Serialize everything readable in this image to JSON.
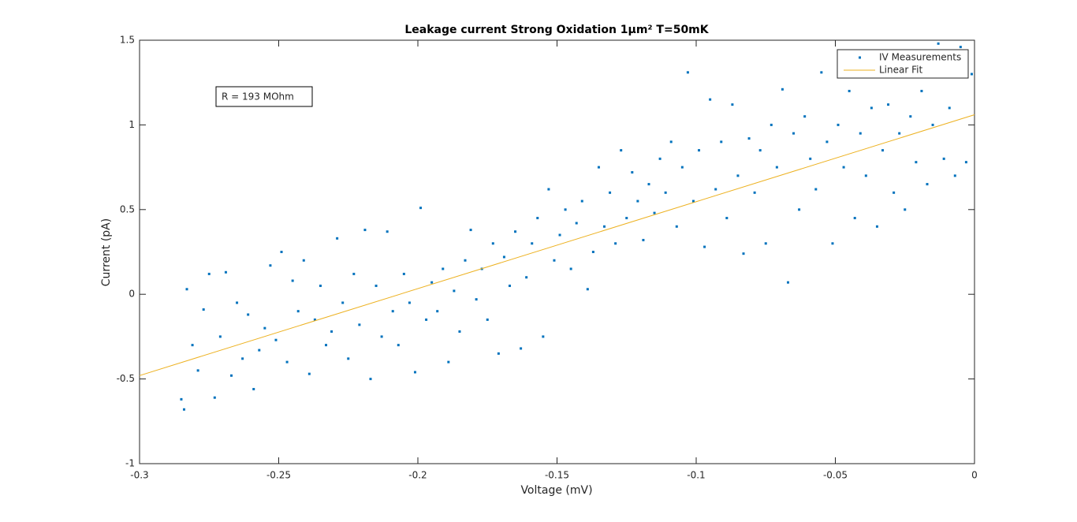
{
  "chart_data": {
    "type": "scatter",
    "title": "Leakage current Strong Oxidation 1μm² T=50mK",
    "xlabel": "Voltage (mV)",
    "ylabel": "Current (pA)",
    "annotation": "R = 193 MOhm",
    "xlim": [
      -0.3,
      0
    ],
    "xticks": [
      -0.3,
      -0.25,
      -0.2,
      -0.15,
      -0.1,
      -0.05,
      0
    ],
    "ylim": [
      -1,
      1.5
    ],
    "yticks": [
      -1,
      -0.5,
      0,
      0.5,
      1,
      1.5
    ],
    "legend": "northeast",
    "series": [
      {
        "name": "IV Measurements",
        "type": "scatter",
        "color": "#0072bd",
        "x": [
          -0.285,
          -0.284,
          -0.283,
          -0.281,
          -0.279,
          -0.277,
          -0.275,
          -0.273,
          -0.271,
          -0.269,
          -0.267,
          -0.265,
          -0.263,
          -0.261,
          -0.259,
          -0.257,
          -0.255,
          -0.253,
          -0.251,
          -0.249,
          -0.247,
          -0.245,
          -0.243,
          -0.241,
          -0.239,
          -0.237,
          -0.235,
          -0.233,
          -0.231,
          -0.229,
          -0.227,
          -0.225,
          -0.223,
          -0.221,
          -0.219,
          -0.217,
          -0.215,
          -0.213,
          -0.211,
          -0.209,
          -0.207,
          -0.205,
          -0.203,
          -0.201,
          -0.199,
          -0.197,
          -0.195,
          -0.193,
          -0.191,
          -0.189,
          -0.187,
          -0.185,
          -0.183,
          -0.181,
          -0.179,
          -0.177,
          -0.175,
          -0.173,
          -0.171,
          -0.169,
          -0.167,
          -0.165,
          -0.163,
          -0.161,
          -0.159,
          -0.157,
          -0.155,
          -0.153,
          -0.151,
          -0.149,
          -0.147,
          -0.145,
          -0.143,
          -0.141,
          -0.139,
          -0.137,
          -0.135,
          -0.133,
          -0.131,
          -0.129,
          -0.127,
          -0.125,
          -0.123,
          -0.121,
          -0.119,
          -0.117,
          -0.115,
          -0.113,
          -0.111,
          -0.109,
          -0.107,
          -0.105,
          -0.103,
          -0.101,
          -0.099,
          -0.097,
          -0.095,
          -0.093,
          -0.091,
          -0.089,
          -0.087,
          -0.085,
          -0.083,
          -0.081,
          -0.079,
          -0.077,
          -0.075,
          -0.073,
          -0.071,
          -0.069,
          -0.067,
          -0.065,
          -0.063,
          -0.061,
          -0.059,
          -0.057,
          -0.055,
          -0.053,
          -0.051,
          -0.049,
          -0.047,
          -0.045,
          -0.043,
          -0.041,
          -0.039,
          -0.037,
          -0.035,
          -0.033,
          -0.031,
          -0.029,
          -0.027,
          -0.025,
          -0.023,
          -0.021,
          -0.019,
          -0.017,
          -0.015,
          -0.013,
          -0.011,
          -0.009,
          -0.007,
          -0.005,
          -0.003,
          -0.001
        ],
        "values": [
          -0.62,
          -0.68,
          0.03,
          -0.3,
          -0.45,
          -0.09,
          0.12,
          -0.61,
          -0.25,
          0.13,
          -0.48,
          -0.05,
          -0.38,
          -0.12,
          -0.56,
          -0.33,
          -0.2,
          0.17,
          -0.27,
          0.25,
          -0.4,
          0.08,
          -0.1,
          0.2,
          -0.47,
          -0.15,
          0.05,
          -0.3,
          -0.22,
          0.33,
          -0.05,
          -0.38,
          0.12,
          -0.18,
          0.38,
          -0.5,
          0.05,
          -0.25,
          0.37,
          -0.1,
          -0.3,
          0.12,
          -0.05,
          -0.46,
          0.51,
          -0.15,
          0.07,
          -0.1,
          0.15,
          -0.4,
          0.02,
          -0.22,
          0.2,
          0.38,
          -0.03,
          0.15,
          -0.15,
          0.3,
          -0.35,
          0.22,
          0.05,
          0.37,
          -0.32,
          0.1,
          0.3,
          0.45,
          -0.25,
          0.62,
          0.2,
          0.35,
          0.5,
          0.15,
          0.42,
          0.55,
          0.03,
          0.25,
          0.75,
          0.4,
          0.6,
          0.3,
          0.85,
          0.45,
          0.72,
          0.55,
          0.32,
          0.65,
          0.48,
          0.8,
          0.6,
          0.9,
          0.4,
          0.75,
          1.31,
          0.55,
          0.85,
          0.28,
          1.15,
          0.62,
          0.9,
          0.45,
          1.12,
          0.7,
          0.24,
          0.92,
          0.6,
          0.85,
          0.3,
          1.0,
          0.75,
          1.21,
          0.07,
          0.95,
          0.5,
          1.05,
          0.8,
          0.62,
          1.31,
          0.9,
          0.3,
          1.0,
          0.75,
          1.2,
          0.45,
          0.95,
          0.7,
          1.1,
          0.4,
          0.85,
          1.12,
          0.6,
          0.95,
          0.5,
          1.05,
          0.78,
          1.2,
          0.65,
          1.0,
          1.48,
          0.8,
          1.1,
          0.7,
          1.46,
          0.78,
          1.3
        ]
      },
      {
        "name": "Linear Fit",
        "type": "line",
        "color": "#edb120",
        "x": [
          -0.3,
          0
        ],
        "values": [
          -0.48,
          1.06
        ]
      }
    ]
  }
}
